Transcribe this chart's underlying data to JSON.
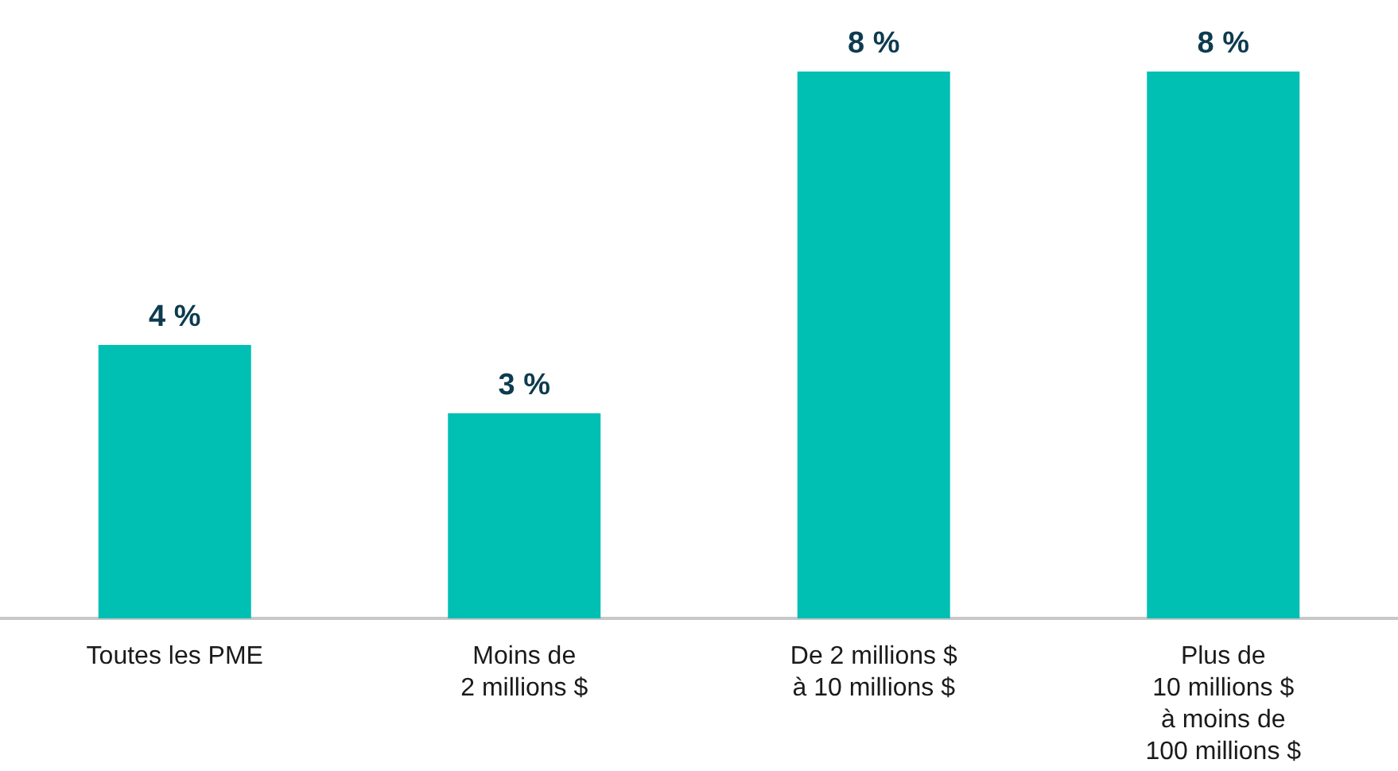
{
  "chart_data": {
    "type": "bar",
    "categories": [
      "Toutes les PME",
      "Moins de\n2 millions $",
      "De 2 millions $\nà 10 millions $",
      "Plus de\n10 millions $\nà moins de\n100 millions $"
    ],
    "values": [
      4,
      3,
      8,
      8
    ],
    "value_labels": [
      "4 %",
      "3 %",
      "8 %",
      "8 %"
    ],
    "color": "#00bfb3",
    "grid": false,
    "tick_labels": "x"
  }
}
